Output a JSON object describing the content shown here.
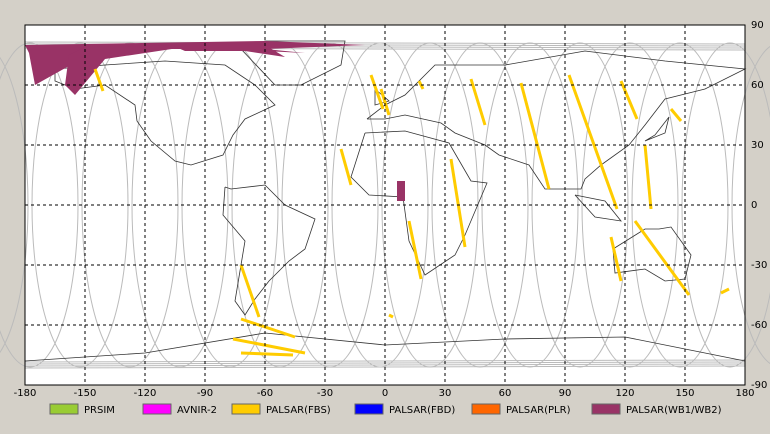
{
  "chart_data": {
    "type": "map",
    "xlim": [
      -180,
      180
    ],
    "ylim": [
      -90,
      90
    ],
    "xticks": [
      -180,
      -150,
      -120,
      -90,
      -60,
      -30,
      0,
      30,
      60,
      90,
      120,
      150,
      180
    ],
    "yticks": [
      90,
      60,
      30,
      0,
      -30,
      -60,
      -90
    ],
    "grid": true,
    "legend": [
      {
        "name": "PRSIM",
        "color": "#99cc33"
      },
      {
        "name": "AVNIR-2",
        "color": "#ff00ff"
      },
      {
        "name": "PALSAR(FBS)",
        "color": "#ffcc00"
      },
      {
        "name": "PALSAR(FBD)",
        "color": "#0000ff"
      },
      {
        "name": "PALSAR(PLR)",
        "color": "#ff6600"
      },
      {
        "name": "PALSAR(WB1/WB2)",
        "color": "#993366"
      }
    ]
  }
}
